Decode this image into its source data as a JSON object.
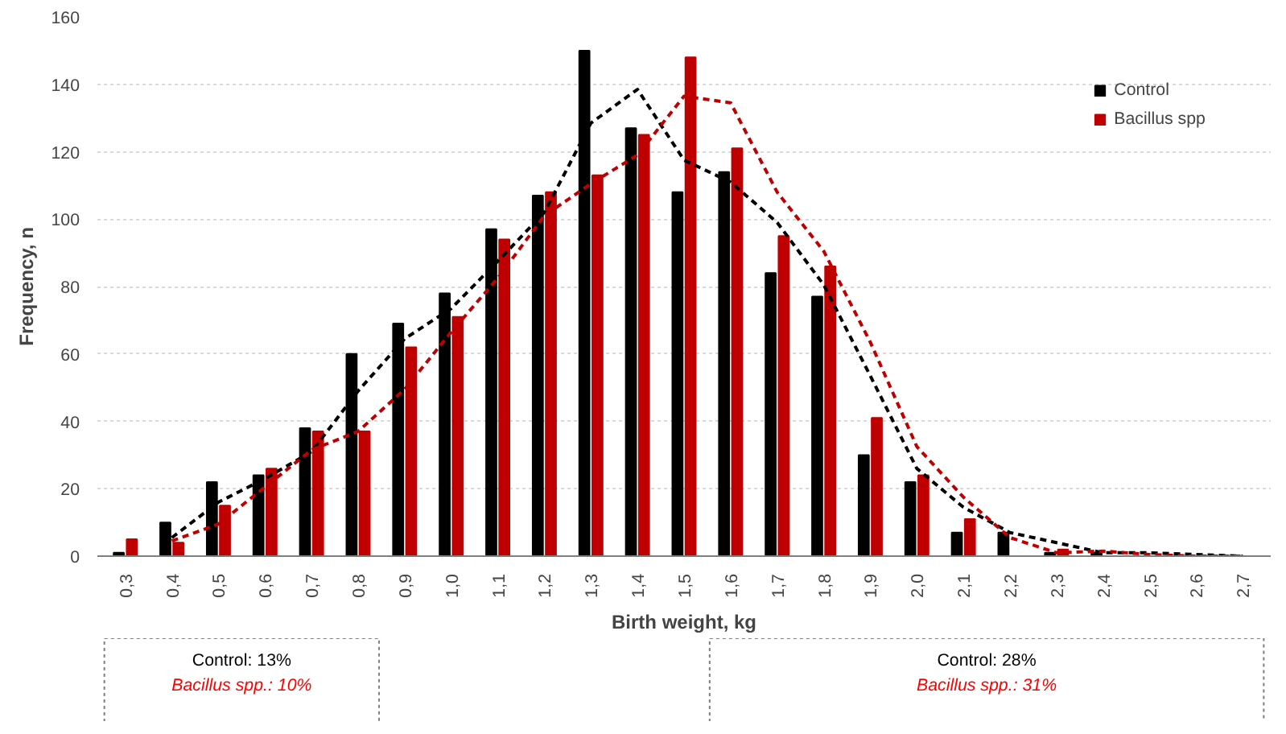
{
  "chart_data": {
    "type": "bar",
    "xlabel": "Birth weight, kg",
    "ylabel": "Frequency, n",
    "categories": [
      "0,3",
      "0,4",
      "0,5",
      "0,6",
      "0,7",
      "0,8",
      "0,9",
      "1,0",
      "1,1",
      "1,2",
      "1,3",
      "1,4",
      "1,5",
      "1,6",
      "1,7",
      "1,8",
      "1,9",
      "2,0",
      "2,1",
      "2,2",
      "2,3",
      "2,4",
      "2,5",
      "2,6",
      "2,7"
    ],
    "series": [
      {
        "name": "Control",
        "color": "#000000",
        "values": [
          1,
          10,
          22,
          24,
          38,
          60,
          69,
          78,
          97,
          107,
          150,
          127,
          108,
          114,
          84,
          77,
          30,
          22,
          7,
          7,
          1,
          1,
          null,
          0,
          0
        ]
      },
      {
        "name": "Bacillus spp",
        "color": "#c00000",
        "values": [
          5,
          4,
          15,
          26,
          37,
          37,
          62,
          71,
          94,
          108,
          113,
          125,
          148,
          121,
          95,
          86,
          41,
          24,
          11,
          0,
          2,
          null,
          0,
          0,
          0
        ]
      },
      {
        "type": "line",
        "color": "#000000",
        "line_style": "dashed",
        "values": [
          null,
          5.5,
          16,
          23,
          31,
          49,
          64.5,
          73.5,
          87.5,
          102,
          128.5,
          138.5,
          117.5,
          111,
          99,
          80.5,
          53.5,
          26,
          14.5,
          7,
          4,
          1,
          1,
          0.5,
          0
        ]
      },
      {
        "type": "line",
        "color": "#c00000",
        "line_style": "dashed",
        "values": [
          null,
          4.5,
          9.5,
          20.5,
          31.5,
          37,
          49.5,
          66.5,
          82.5,
          101,
          110.5,
          119,
          136.5,
          134.5,
          108,
          90.5,
          63.5,
          32.5,
          17.5,
          5.5,
          1,
          1.5,
          0.5,
          0,
          0
        ]
      }
    ],
    "ylim": [
      0,
      160
    ],
    "yticks": [
      0,
      20,
      40,
      60,
      80,
      100,
      120,
      140,
      160
    ],
    "grid": "y",
    "legend": "top right",
    "annotations": [
      "Control: 13%",
      "Bacillus spp.: 10%",
      "Control: 28%",
      "Bacillus spp.: 31%"
    ]
  }
}
